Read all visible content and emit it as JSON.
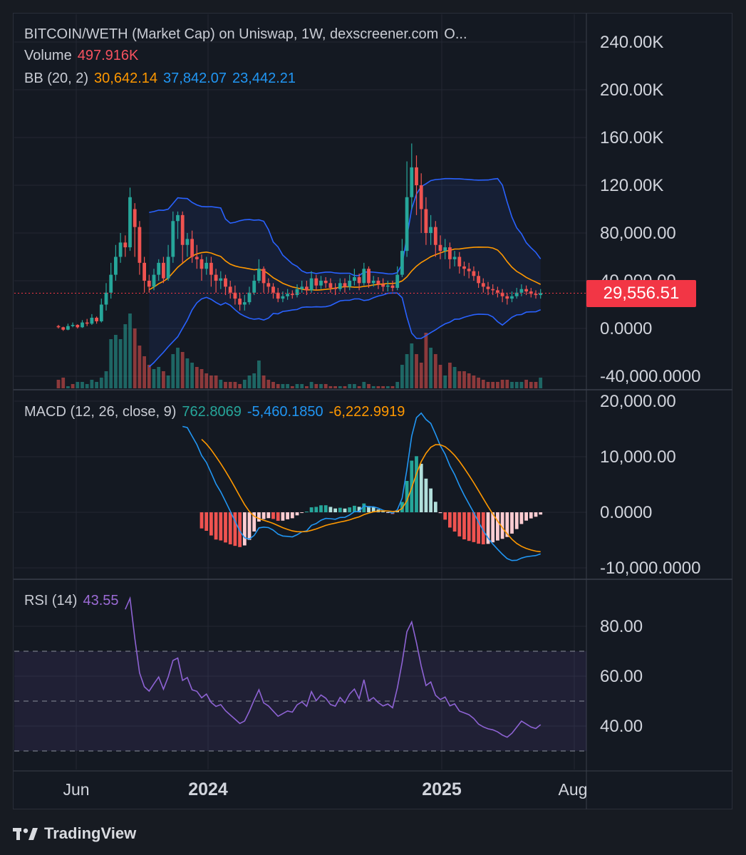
{
  "chart_data": [
    {
      "type": "candlestick",
      "panel": "price",
      "title": "BITCOIN/WETH (Market Cap) on Uniswap, 1W, dexscreener.com",
      "title_suffix": "O...",
      "volume_label": "Volume",
      "volume_value": "497.916K",
      "bb_label": "BB (20, 2)",
      "bb_basis": "30,642.14",
      "bb_upper": "37,842.07",
      "bb_lower": "23,442.21",
      "last_price": "29,556.51",
      "y_ticks": [
        "240.00K",
        "200.00K",
        "160.00K",
        "120.00K",
        "80,000.00",
        "40,000.00",
        "0.0000",
        "-40,000.0000"
      ],
      "ylim": [
        -50000,
        255000
      ],
      "x_ticks": [
        "Jun",
        "2024",
        "2025",
        "Aug"
      ],
      "candles": [
        [
          2000,
          1000,
          3000,
          0
        ],
        [
          1000,
          -1000,
          1500,
          -2000
        ],
        [
          -1000,
          2000,
          4000,
          -1500
        ],
        [
          2000,
          3000,
          5000,
          1000
        ],
        [
          3000,
          1000,
          3500,
          0
        ],
        [
          1000,
          5000,
          7000,
          500
        ],
        [
          5000,
          4000,
          8000,
          2000
        ],
        [
          4000,
          9000,
          12000,
          3000
        ],
        [
          9000,
          6000,
          10000,
          4000
        ],
        [
          6000,
          20000,
          25000,
          5000
        ],
        [
          20000,
          30000,
          38000,
          15000
        ],
        [
          30000,
          45000,
          55000,
          25000
        ],
        [
          45000,
          60000,
          70000,
          40000
        ],
        [
          60000,
          72000,
          80000,
          55000
        ],
        [
          72000,
          68000,
          78000,
          60000
        ],
        [
          68000,
          110000,
          118000,
          65000
        ],
        [
          100000,
          85000,
          105000,
          60000
        ],
        [
          85000,
          55000,
          90000,
          45000
        ],
        [
          55000,
          40000,
          60000,
          30000
        ],
        [
          40000,
          35000,
          45000,
          30000
        ],
        [
          35000,
          45000,
          50000,
          32000
        ],
        [
          45000,
          55000,
          58000,
          40000
        ],
        [
          55000,
          42000,
          60000,
          38000
        ],
        [
          42000,
          60000,
          70000,
          40000
        ],
        [
          60000,
          90000,
          98000,
          55000
        ],
        [
          90000,
          95000,
          98000,
          75000
        ],
        [
          95000,
          70000,
          98000,
          55000
        ],
        [
          70000,
          75000,
          80000,
          60000
        ],
        [
          75000,
          60000,
          82000,
          55000
        ],
        [
          60000,
          58000,
          70000,
          50000
        ],
        [
          58000,
          50000,
          62000,
          40000
        ],
        [
          50000,
          55000,
          60000,
          45000
        ],
        [
          55000,
          45000,
          60000,
          35000
        ],
        [
          45000,
          40000,
          50000,
          30000
        ],
        [
          40000,
          42000,
          48000,
          33000
        ],
        [
          42000,
          35000,
          45000,
          28000
        ],
        [
          35000,
          30000,
          40000,
          25000
        ],
        [
          30000,
          25000,
          36000,
          20000
        ],
        [
          25000,
          20000,
          30000,
          15000
        ],
        [
          20000,
          22000,
          28000,
          15000
        ],
        [
          22000,
          30000,
          35000,
          20000
        ],
        [
          30000,
          40000,
          45000,
          28000
        ],
        [
          40000,
          50000,
          58000,
          38000
        ],
        [
          50000,
          38000,
          52000,
          30000
        ],
        [
          38000,
          35000,
          42000,
          30000
        ],
        [
          35000,
          30000,
          38000,
          25000
        ],
        [
          30000,
          25000,
          34000,
          22000
        ],
        [
          25000,
          27000,
          31000,
          22000
        ],
        [
          27000,
          29000,
          33000,
          24000
        ],
        [
          29000,
          28000,
          32000,
          25000
        ],
        [
          28000,
          33000,
          37000,
          26000
        ],
        [
          33000,
          35000,
          40000,
          30000
        ],
        [
          35000,
          32000,
          40000,
          28000
        ],
        [
          32000,
          42000,
          48000,
          30000
        ],
        [
          42000,
          36000,
          45000,
          32000
        ],
        [
          36000,
          40000,
          44000,
          33000
        ],
        [
          40000,
          38000,
          43000,
          34000
        ],
        [
          38000,
          34000,
          42000,
          30000
        ],
        [
          34000,
          33000,
          38000,
          28000
        ],
        [
          33000,
          38000,
          42000,
          31000
        ],
        [
          38000,
          35000,
          42000,
          30000
        ],
        [
          35000,
          40000,
          45000,
          32000
        ],
        [
          40000,
          43000,
          50000,
          36000
        ],
        [
          43000,
          38000,
          46000,
          32000
        ],
        [
          38000,
          50000,
          55000,
          36000
        ],
        [
          50000,
          38000,
          52000,
          34000
        ],
        [
          38000,
          40000,
          44000,
          35000
        ],
        [
          40000,
          37000,
          43000,
          33000
        ],
        [
          37000,
          35000,
          42000,
          31000
        ],
        [
          35000,
          36000,
          40000,
          31000
        ],
        [
          36000,
          34000,
          40000,
          31000
        ],
        [
          34000,
          45000,
          52000,
          32000
        ],
        [
          45000,
          65000,
          75000,
          43000
        ],
        [
          65000,
          110000,
          140000,
          60000
        ],
        [
          110000,
          135000,
          155000,
          100000
        ],
        [
          135000,
          120000,
          145000,
          95000
        ],
        [
          120000,
          100000,
          130000,
          80000
        ],
        [
          100000,
          80000,
          110000,
          70000
        ],
        [
          80000,
          85000,
          95000,
          70000
        ],
        [
          85000,
          70000,
          90000,
          60000
        ],
        [
          70000,
          65000,
          78000,
          58000
        ],
        [
          65000,
          68000,
          75000,
          58000
        ],
        [
          68000,
          58000,
          72000,
          50000
        ],
        [
          58000,
          60000,
          65000,
          52000
        ],
        [
          60000,
          52000,
          64000,
          46000
        ],
        [
          52000,
          50000,
          56000,
          44000
        ],
        [
          50000,
          48000,
          55000,
          42000
        ],
        [
          48000,
          44000,
          52000,
          40000
        ],
        [
          44000,
          38000,
          48000,
          34000
        ],
        [
          38000,
          35000,
          42000,
          30000
        ],
        [
          35000,
          33000,
          39000,
          28000
        ],
        [
          33000,
          32000,
          37000,
          28000
        ],
        [
          32000,
          30000,
          35000,
          26000
        ],
        [
          30000,
          27000,
          33000,
          22000
        ],
        [
          27000,
          25000,
          30000,
          20000
        ],
        [
          25000,
          27000,
          31000,
          22000
        ],
        [
          27000,
          30000,
          34000,
          25000
        ],
        [
          30000,
          33000,
          37000,
          27000
        ],
        [
          33000,
          31000,
          36000,
          28000
        ],
        [
          31000,
          29000,
          34000,
          26000
        ],
        [
          29000,
          28000,
          32000,
          25000
        ],
        [
          28000,
          29556,
          33000,
          25000
        ]
      ],
      "volume": [
        [
          40,
          0
        ],
        [
          50,
          0
        ],
        [
          10,
          1
        ],
        [
          20,
          0
        ],
        [
          30,
          1
        ],
        [
          30,
          1
        ],
        [
          20,
          1
        ],
        [
          40,
          1
        ],
        [
          30,
          1
        ],
        [
          50,
          1
        ],
        [
          80,
          1
        ],
        [
          230,
          1
        ],
        [
          250,
          1
        ],
        [
          230,
          1
        ],
        [
          300,
          1
        ],
        [
          350,
          1
        ],
        [
          280,
          0
        ],
        [
          200,
          0
        ],
        [
          150,
          0
        ],
        [
          110,
          0
        ],
        [
          90,
          1
        ],
        [
          100,
          1
        ],
        [
          80,
          0
        ],
        [
          60,
          1
        ],
        [
          160,
          1
        ],
        [
          190,
          1
        ],
        [
          170,
          0
        ],
        [
          140,
          1
        ],
        [
          120,
          1
        ],
        [
          100,
          0
        ],
        [
          90,
          0
        ],
        [
          70,
          0
        ],
        [
          60,
          0
        ],
        [
          60,
          0
        ],
        [
          40,
          1
        ],
        [
          30,
          0
        ],
        [
          30,
          0
        ],
        [
          30,
          0
        ],
        [
          20,
          0
        ],
        [
          40,
          1
        ],
        [
          60,
          1
        ],
        [
          70,
          1
        ],
        [
          130,
          1
        ],
        [
          60,
          0
        ],
        [
          40,
          0
        ],
        [
          30,
          0
        ],
        [
          20,
          0
        ],
        [
          20,
          1
        ],
        [
          20,
          1
        ],
        [
          10,
          0
        ],
        [
          20,
          1
        ],
        [
          20,
          1
        ],
        [
          10,
          0
        ],
        [
          30,
          1
        ],
        [
          20,
          0
        ],
        [
          20,
          1
        ],
        [
          20,
          0
        ],
        [
          10,
          0
        ],
        [
          10,
          0
        ],
        [
          10,
          1
        ],
        [
          10,
          0
        ],
        [
          20,
          1
        ],
        [
          20,
          1
        ],
        [
          10,
          0
        ],
        [
          30,
          1
        ],
        [
          20,
          0
        ],
        [
          10,
          1
        ],
        [
          10,
          0
        ],
        [
          10,
          0
        ],
        [
          10,
          1
        ],
        [
          10,
          0
        ],
        [
          30,
          1
        ],
        [
          110,
          1
        ],
        [
          160,
          1
        ],
        [
          210,
          1
        ],
        [
          160,
          0
        ],
        [
          120,
          0
        ],
        [
          260,
          0
        ],
        [
          190,
          1
        ],
        [
          160,
          0
        ],
        [
          110,
          0
        ],
        [
          60,
          1
        ],
        [
          120,
          0
        ],
        [
          100,
          1
        ],
        [
          80,
          0
        ],
        [
          80,
          0
        ],
        [
          70,
          0
        ],
        [
          60,
          0
        ],
        [
          50,
          0
        ],
        [
          40,
          0
        ],
        [
          30,
          0
        ],
        [
          30,
          0
        ],
        [
          30,
          0
        ],
        [
          40,
          0
        ],
        [
          40,
          0
        ],
        [
          30,
          1
        ],
        [
          30,
          1
        ],
        [
          30,
          1
        ],
        [
          40,
          0
        ],
        [
          30,
          0
        ],
        [
          30,
          0
        ],
        [
          50,
          1
        ]
      ]
    },
    {
      "type": "macd",
      "panel": "macd",
      "label": "MACD (12, 26, close, 9)",
      "histogram_value": "762.8069",
      "macd_value": "-5,460.1850",
      "signal_value": "-6,222.9919",
      "y_ticks": [
        "20,000.00",
        "10,000.00",
        "0.0000",
        "-10,000.0000"
      ],
      "ylim": [
        -11000,
        21000
      ]
    },
    {
      "type": "line",
      "panel": "rsi",
      "label": "RSI (14)",
      "value": "43.55",
      "y_ticks": [
        "80.00",
        "60.00",
        "40.00"
      ],
      "bands": [
        30,
        50,
        70
      ],
      "ylim": [
        23,
        98
      ]
    }
  ],
  "colors": {
    "up": "#26a69a",
    "down": "#ef5350",
    "bb_basis": "#ff9800",
    "bb_band": "#2962ff",
    "macd": "#2196f3",
    "signal": "#ff9800",
    "rsi": "#7e57c2",
    "price_badge": "#f23645"
  },
  "branding": {
    "name": "TradingView",
    "logo_text": "TV"
  }
}
